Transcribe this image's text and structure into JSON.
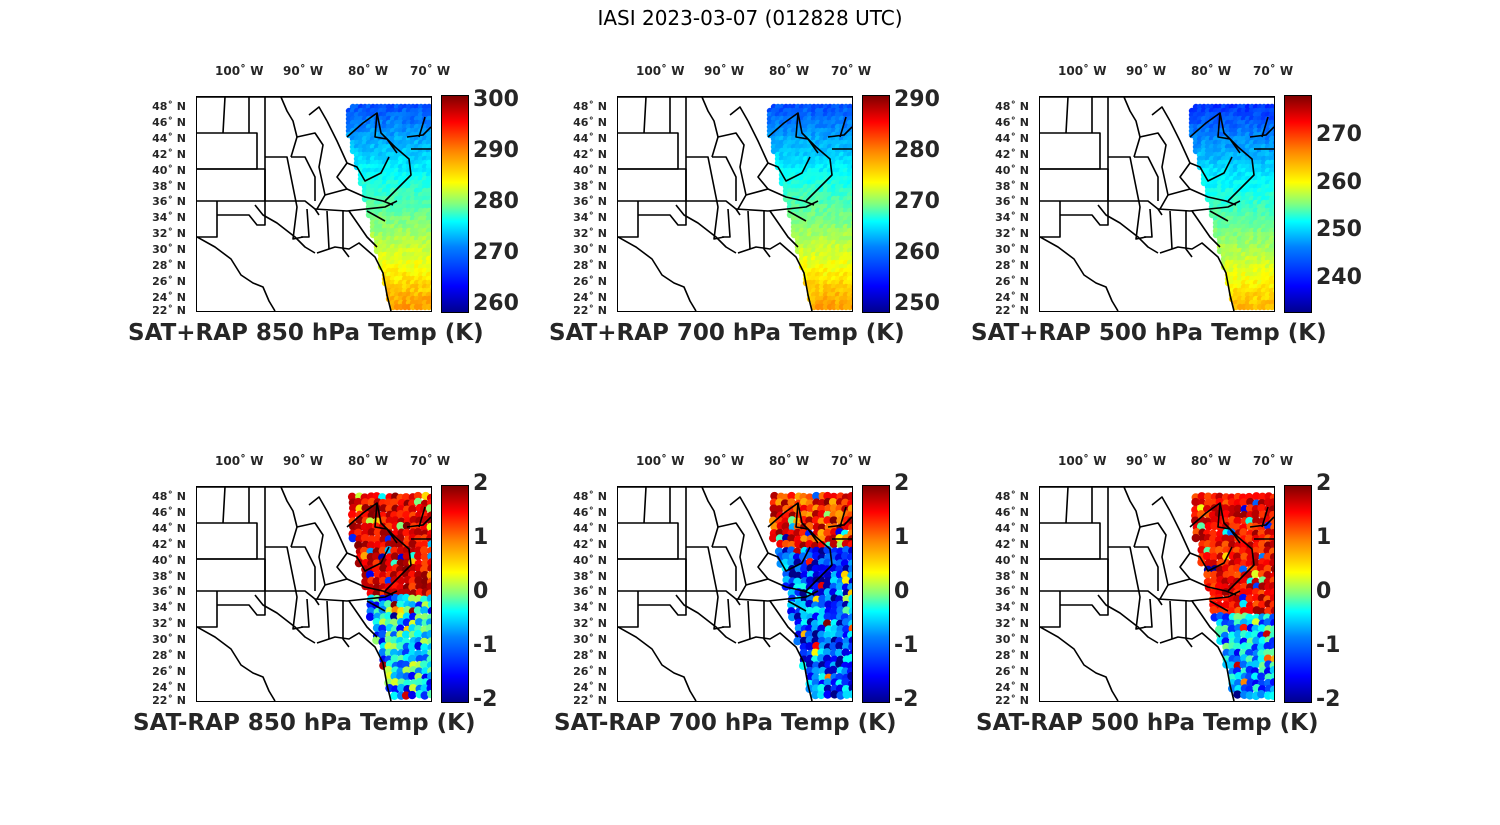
{
  "figure_title": "IASI 2023-03-07 (012828 UTC)",
  "lon_labels": [
    "100˚ W",
    "90˚ W",
    "80˚ W",
    "70˚ W"
  ],
  "lat_labels": [
    "48˚ N",
    "46˚ N",
    "44˚ N",
    "42˚ N",
    "40˚ N",
    "38˚ N",
    "36˚ N",
    "34˚ N",
    "32˚ N",
    "30˚ N",
    "28˚ N",
    "26˚ N",
    "24˚ N",
    "22˚ N"
  ],
  "panels": [
    {
      "title": "SAT+RAP 850 hPa Temp (K)",
      "colorbar_ticks": [
        "300",
        "290",
        "280",
        "270",
        "260"
      ],
      "field": "abs"
    },
    {
      "title": "SAT+RAP 700 hPa Temp (K)",
      "colorbar_ticks": [
        "290",
        "280",
        "270",
        "260",
        "250"
      ],
      "field": "abs"
    },
    {
      "title": "SAT+RAP 500 hPa Temp (K)",
      "colorbar_ticks": [
        "270",
        "260",
        "250",
        "240"
      ],
      "field": "abs"
    },
    {
      "title": "SAT-RAP 850 hPa Temp (K)",
      "colorbar_ticks": [
        "2",
        "1",
        "0",
        "-1",
        "-2"
      ],
      "field": "diff"
    },
    {
      "title": "SAT-RAP 700 hPa Temp (K)",
      "colorbar_ticks": [
        "2",
        "1",
        "0",
        "-1",
        "-2"
      ],
      "field": "diff"
    },
    {
      "title": "SAT-RAP 500 hPa Temp (K)",
      "colorbar_ticks": [
        "2",
        "1",
        "0",
        "-1",
        "-2"
      ],
      "field": "diff"
    }
  ]
}
